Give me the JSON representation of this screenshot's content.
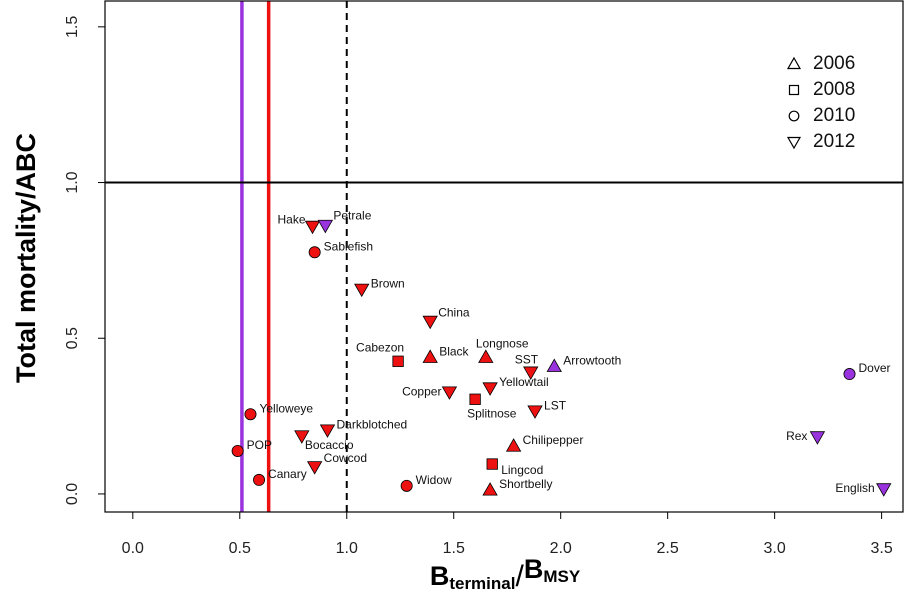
{
  "chart_data": {
    "type": "scatter",
    "y_label": "Total mortality/ABC",
    "x_label_parts": [
      "B",
      "terminal",
      "/",
      "B",
      "MSY"
    ],
    "xlim": [
      -0.13,
      3.6
    ],
    "ylim": [
      -0.058,
      1.583
    ],
    "xticks": [
      {
        "value": 0,
        "label": "0.0"
      },
      {
        "value": 0.5,
        "label": "0.5"
      },
      {
        "value": 1,
        "label": "1.0"
      },
      {
        "value": 1.5,
        "label": "1.5"
      },
      {
        "value": 2,
        "label": "2.0"
      },
      {
        "value": 2.5,
        "label": "2.5"
      },
      {
        "value": 3,
        "label": "3.0"
      },
      {
        "value": 3.5,
        "label": "3.5"
      }
    ],
    "yticks": [
      {
        "value": 0,
        "label": "0.0"
      },
      {
        "value": 0.5,
        "label": "0.5"
      },
      {
        "value": 1,
        "label": "1.0"
      },
      {
        "value": 1.5,
        "label": "1.5"
      }
    ],
    "vlines": [
      {
        "value": 0.51,
        "color": "#9933dd"
      },
      {
        "value": 0.635,
        "color": "#ee1111"
      },
      {
        "value": 1.0,
        "color": "#000000",
        "dashed": true
      }
    ],
    "hlines": [
      {
        "value": 1.0,
        "color": "#000000"
      }
    ],
    "series": [
      {
        "name": "2006",
        "marker": "triangle-up",
        "labels": [
          "Black",
          "Longnose",
          "Arrowtooth",
          "Chilipepper",
          "Shortbelly"
        ],
        "x": [
          1.39,
          1.65,
          1.97,
          1.78,
          1.67
        ],
        "values": [
          0.439,
          0.439,
          0.41,
          0.154,
          0.013
        ],
        "colors": [
          "#ee1111",
          "#ee1111",
          "#9933dd",
          "#ee1111",
          "#ee1111"
        ]
      },
      {
        "name": "2008",
        "marker": "square",
        "labels": [
          "Cabezon",
          "Splitnose",
          "Lingcod"
        ],
        "x": [
          1.24,
          1.6,
          1.68
        ],
        "values": [
          0.426,
          0.304,
          0.096
        ],
        "colors": [
          "#ee1111",
          "#ee1111",
          "#ee1111"
        ]
      },
      {
        "name": "2010",
        "marker": "circle",
        "labels": [
          "Sablefish",
          "Dover",
          "Yelloweye",
          "POP",
          "Canary",
          "Widow"
        ],
        "x": [
          0.85,
          3.35,
          0.55,
          0.49,
          0.59,
          1.28
        ],
        "values": [
          0.776,
          0.385,
          0.256,
          0.138,
          0.045,
          0.026
        ],
        "colors": [
          "#ee1111",
          "#9933dd",
          "#ee1111",
          "#ee1111",
          "#ee1111",
          "#ee1111"
        ]
      },
      {
        "name": "2012",
        "marker": "triangle-down",
        "labels": [
          "Hake",
          "Petrale",
          "Brown",
          "China",
          "SST",
          "Copper",
          "Yellowtail",
          "LST",
          "Darkblotched",
          "Bocaccio",
          "Rex",
          "Cowcod",
          "English"
        ],
        "x": [
          0.84,
          0.9,
          1.07,
          1.39,
          1.86,
          1.48,
          1.67,
          1.88,
          0.91,
          0.79,
          3.2,
          0.85,
          3.51
        ],
        "values": [
          0.859,
          0.862,
          0.657,
          0.554,
          0.391,
          0.327,
          0.34,
          0.266,
          0.205,
          0.186,
          0.183,
          0.087,
          0.016
        ],
        "colors": [
          "#ee1111",
          "#9933dd",
          "#ee1111",
          "#ee1111",
          "#ee1111",
          "#ee1111",
          "#ee1111",
          "#ee1111",
          "#ee1111",
          "#ee1111",
          "#9933dd",
          "#ee1111",
          "#9933dd"
        ]
      }
    ]
  }
}
